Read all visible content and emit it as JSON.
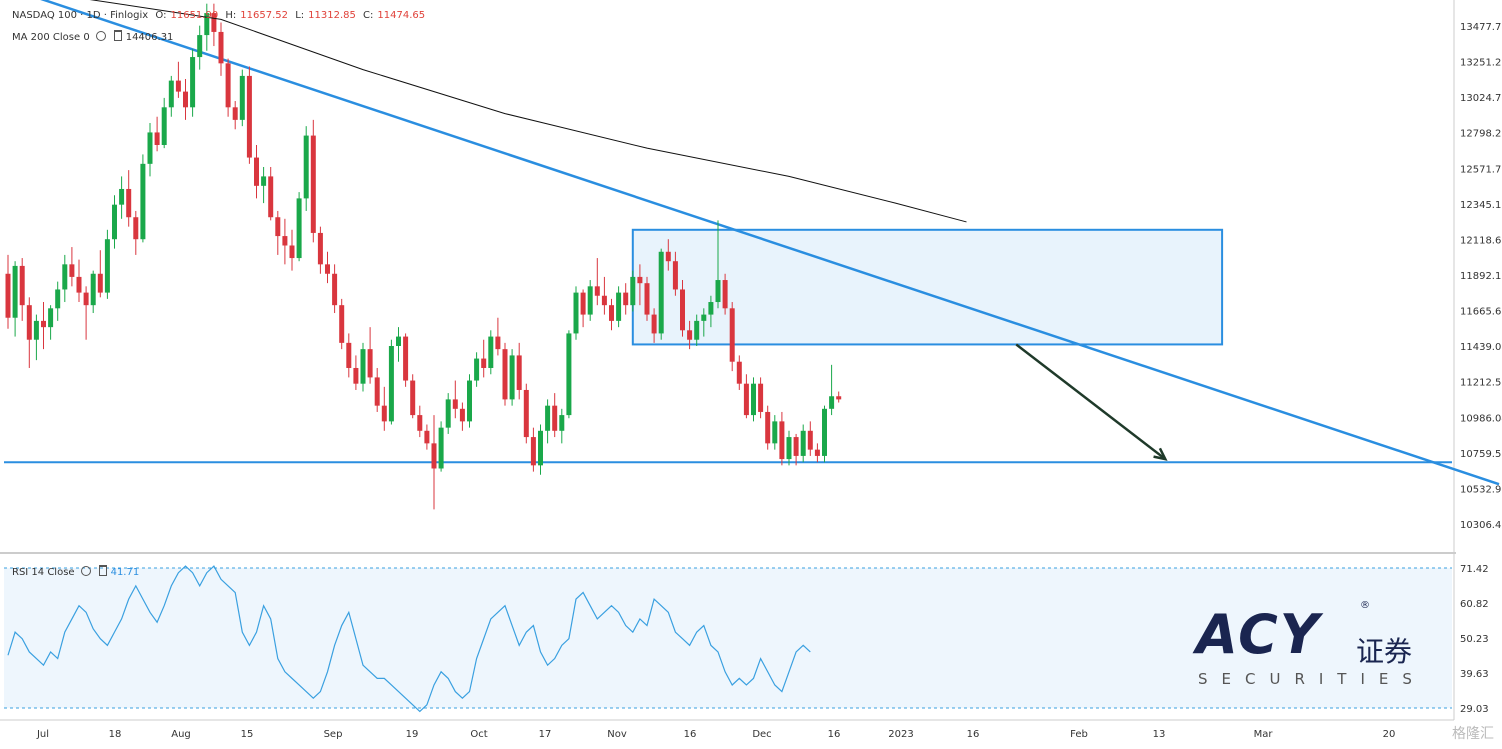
{
  "legend": {
    "symbol": "NASDAQ 100 · 1D · Finlogix",
    "o_label": "O:",
    "o": "11651.90",
    "h_label": "H:",
    "h": "11657.52",
    "l_label": "L:",
    "l": "11312.85",
    "c_label": "C:",
    "c": "11474.65",
    "ma_label": "MA 200 Close 0",
    "ma_value": "14406.31",
    "rsi_label": "RSI 14 Close",
    "rsi_value": "41.71"
  },
  "brand": {
    "name": "ACY",
    "cn": "证券",
    "sub": "SECURITIES",
    "reg": "®"
  },
  "watermark": "格隆汇",
  "colors": {
    "up": "#1aa84a",
    "down": "#d9363e",
    "line": "#2a8ee0",
    "ma": "#111111",
    "zone_fill": "#e8f3fc",
    "rsi": "#3aa0e0"
  },
  "chart_data": [
    {
      "type": "candlestick",
      "title": "NASDAQ 100 · 1D · Finlogix",
      "ylim": [
        10200,
        13600
      ],
      "y_ticks": [
        "13477.79",
        "13251.27",
        "13024.75",
        "12798.22",
        "12571.70",
        "12345.18",
        "12118.65",
        "11892.13",
        "11665.61",
        "11439.08",
        "11212.56",
        "10986.04",
        "10759.51",
        "10532.99",
        "10306.47"
      ],
      "x_ticks": [
        "Jul",
        "18",
        "Aug",
        "15",
        "Sep",
        "19",
        "Oct",
        "17",
        "Nov",
        "16",
        "Dec",
        "16",
        "2023",
        "16",
        "Feb",
        "13",
        "Mar",
        "20"
      ],
      "candles": [
        [
          11900,
          12020,
          11550,
          11620
        ],
        [
          11620,
          11980,
          11500,
          11950
        ],
        [
          11950,
          12000,
          11600,
          11700
        ],
        [
          11700,
          11750,
          11300,
          11480
        ],
        [
          11480,
          11640,
          11350,
          11600
        ],
        [
          11600,
          11720,
          11420,
          11560
        ],
        [
          11560,
          11700,
          11480,
          11680
        ],
        [
          11680,
          11850,
          11600,
          11800
        ],
        [
          11800,
          12020,
          11720,
          11960
        ],
        [
          11960,
          12070,
          11820,
          11880
        ],
        [
          11880,
          11990,
          11720,
          11780
        ],
        [
          11780,
          11820,
          11480,
          11700
        ],
        [
          11700,
          11920,
          11650,
          11900
        ],
        [
          11900,
          12050,
          11750,
          11780
        ],
        [
          11780,
          12180,
          11740,
          12120
        ],
        [
          12120,
          12400,
          12060,
          12340
        ],
        [
          12340,
          12520,
          12250,
          12440
        ],
        [
          12440,
          12560,
          12200,
          12260
        ],
        [
          12260,
          12300,
          12020,
          12120
        ],
        [
          12120,
          12660,
          12100,
          12600
        ],
        [
          12600,
          12860,
          12520,
          12800
        ],
        [
          12800,
          12900,
          12680,
          12720
        ],
        [
          12720,
          13020,
          12700,
          12960
        ],
        [
          12960,
          13160,
          12900,
          13130
        ],
        [
          13130,
          13250,
          13020,
          13060
        ],
        [
          13060,
          13140,
          12880,
          12960
        ],
        [
          12960,
          13330,
          12900,
          13280
        ],
        [
          13280,
          13480,
          13200,
          13420
        ],
        [
          13420,
          13620,
          13320,
          13560
        ],
        [
          13560,
          13620,
          13350,
          13440
        ],
        [
          13440,
          13500,
          13160,
          13240
        ],
        [
          13240,
          13270,
          12900,
          12960
        ],
        [
          12960,
          13000,
          12820,
          12880
        ],
        [
          12880,
          13200,
          12840,
          13160
        ],
        [
          13160,
          13220,
          12600,
          12640
        ],
        [
          12640,
          12720,
          12380,
          12460
        ],
        [
          12460,
          12580,
          12350,
          12520
        ],
        [
          12520,
          12580,
          12240,
          12260
        ],
        [
          12260,
          12300,
          12020,
          12140
        ],
        [
          12140,
          12250,
          11960,
          12080
        ],
        [
          12080,
          12180,
          11920,
          12000
        ],
        [
          12000,
          12420,
          11980,
          12380
        ],
        [
          12380,
          12840,
          12300,
          12780
        ],
        [
          12780,
          12880,
          12100,
          12160
        ],
        [
          12160,
          12200,
          11900,
          11960
        ],
        [
          11960,
          12040,
          11840,
          11900
        ],
        [
          11900,
          11960,
          11650,
          11700
        ],
        [
          11700,
          11740,
          11420,
          11460
        ],
        [
          11460,
          11520,
          11240,
          11300
        ],
        [
          11300,
          11380,
          11160,
          11200
        ],
        [
          11200,
          11460,
          11150,
          11420
        ],
        [
          11420,
          11560,
          11200,
          11240
        ],
        [
          11240,
          11300,
          11020,
          11060
        ],
        [
          11060,
          11180,
          10900,
          10960
        ],
        [
          10960,
          11480,
          10940,
          11440
        ],
        [
          11440,
          11560,
          11340,
          11500
        ],
        [
          11500,
          11520,
          11180,
          11220
        ],
        [
          11220,
          11260,
          10980,
          11000
        ],
        [
          11000,
          11060,
          10860,
          10900
        ],
        [
          10900,
          10940,
          10780,
          10820
        ],
        [
          10820,
          11000,
          10400,
          10660
        ],
        [
          10660,
          10960,
          10640,
          10920
        ],
        [
          10920,
          11140,
          10880,
          11100
        ],
        [
          11100,
          11220,
          10980,
          11040
        ],
        [
          11040,
          11080,
          10900,
          10960
        ],
        [
          10960,
          11260,
          10920,
          11220
        ],
        [
          11220,
          11400,
          11180,
          11360
        ],
        [
          11360,
          11480,
          11240,
          11300
        ],
        [
          11300,
          11540,
          11260,
          11500
        ],
        [
          11500,
          11620,
          11380,
          11420
        ],
        [
          11420,
          11460,
          11060,
          11100
        ],
        [
          11100,
          11420,
          11060,
          11380
        ],
        [
          11380,
          11460,
          11100,
          11160
        ],
        [
          11160,
          11200,
          10820,
          10860
        ],
        [
          10860,
          10920,
          10640,
          10680
        ],
        [
          10680,
          10940,
          10620,
          10900
        ],
        [
          10900,
          11100,
          10820,
          11060
        ],
        [
          11060,
          11140,
          10860,
          10900
        ],
        [
          10900,
          11040,
          10820,
          11000
        ],
        [
          11000,
          11540,
          10980,
          11520
        ],
        [
          11520,
          11820,
          11480,
          11780
        ],
        [
          11780,
          11800,
          11560,
          11640
        ],
        [
          11640,
          11860,
          11600,
          11820
        ],
        [
          11820,
          12000,
          11700,
          11760
        ],
        [
          11760,
          11880,
          11640,
          11700
        ],
        [
          11700,
          11740,
          11540,
          11600
        ],
        [
          11600,
          11820,
          11560,
          11780
        ],
        [
          11780,
          11840,
          11640,
          11700
        ],
        [
          11700,
          11920,
          11660,
          11880
        ],
        [
          11880,
          11960,
          11700,
          11840
        ],
        [
          11840,
          11880,
          11600,
          11640
        ],
        [
          11640,
          11680,
          11460,
          11520
        ],
        [
          11520,
          12060,
          11480,
          12040
        ],
        [
          12040,
          12120,
          11920,
          11980
        ],
        [
          11980,
          12040,
          11760,
          11800
        ],
        [
          11800,
          11860,
          11500,
          11540
        ],
        [
          11540,
          11600,
          11420,
          11480
        ],
        [
          11480,
          11640,
          11440,
          11600
        ],
        [
          11600,
          11680,
          11500,
          11640
        ],
        [
          11640,
          11760,
          11560,
          11720
        ],
        [
          11720,
          12240,
          11680,
          11860
        ],
        [
          11860,
          11900,
          11640,
          11680
        ],
        [
          11680,
          11720,
          11280,
          11340
        ],
        [
          11340,
          11380,
          11160,
          11200
        ],
        [
          11200,
          11260,
          10980,
          11000
        ],
        [
          11000,
          11240,
          10960,
          11200
        ],
        [
          11200,
          11240,
          10980,
          11020
        ],
        [
          11020,
          11060,
          10780,
          10820
        ],
        [
          10820,
          11000,
          10780,
          10960
        ],
        [
          10960,
          11020,
          10680,
          10720
        ],
        [
          10720,
          10900,
          10680,
          10860
        ],
        [
          10860,
          10880,
          10680,
          10740
        ],
        [
          10740,
          10940,
          10700,
          10900
        ],
        [
          10900,
          10960,
          10740,
          10780
        ],
        [
          10780,
          10820,
          10700,
          10740
        ],
        [
          10740,
          11060,
          10700,
          11040
        ],
        [
          11040,
          11320,
          11000,
          11120
        ],
        [
          11120,
          11150,
          11080,
          11100
        ]
      ],
      "ma200": [
        [
          11,
          13650
        ],
        [
          30,
          13520
        ],
        [
          50,
          13200
        ],
        [
          70,
          12920
        ],
        [
          90,
          12700
        ],
        [
          110,
          12520
        ],
        [
          125,
          12350
        ],
        [
          135,
          12230
        ]
      ],
      "support": 10700,
      "trendline": [
        [
          0,
          13720
        ],
        [
          210,
          10560
        ]
      ],
      "zone": {
        "x0": 88,
        "x1": 171,
        "y0": 11450,
        "y1": 12180
      },
      "arrow": {
        "from": [
          142,
          11450
        ],
        "to": [
          163,
          10720
        ]
      }
    },
    {
      "type": "line",
      "title": "RSI 14 Close",
      "ylim": [
        29.03,
        71.42
      ],
      "y_ticks": [
        "71.42",
        "60.82",
        "50.23",
        "39.63",
        "29.03"
      ],
      "values": [
        45,
        52,
        50,
        46,
        44,
        42,
        46,
        44,
        52,
        56,
        60,
        58,
        53,
        50,
        48,
        52,
        56,
        62,
        66,
        62,
        58,
        55,
        60,
        66,
        70,
        72,
        70,
        66,
        70,
        72,
        68,
        66,
        64,
        52,
        48,
        52,
        60,
        56,
        44,
        40,
        38,
        36,
        34,
        32,
        34,
        40,
        48,
        54,
        58,
        50,
        42,
        40,
        38,
        38,
        36,
        34,
        32,
        30,
        28,
        30,
        36,
        40,
        38,
        34,
        32,
        34,
        44,
        50,
        56,
        58,
        60,
        54,
        48,
        52,
        54,
        46,
        42,
        44,
        48,
        50,
        62,
        64,
        60,
        56,
        58,
        60,
        58,
        54,
        52,
        56,
        54,
        62,
        60,
        58,
        52,
        50,
        48,
        52,
        54,
        48,
        46,
        40,
        36,
        38,
        36,
        38,
        44,
        40,
        36,
        34,
        40,
        46,
        48,
        46
      ]
    }
  ]
}
